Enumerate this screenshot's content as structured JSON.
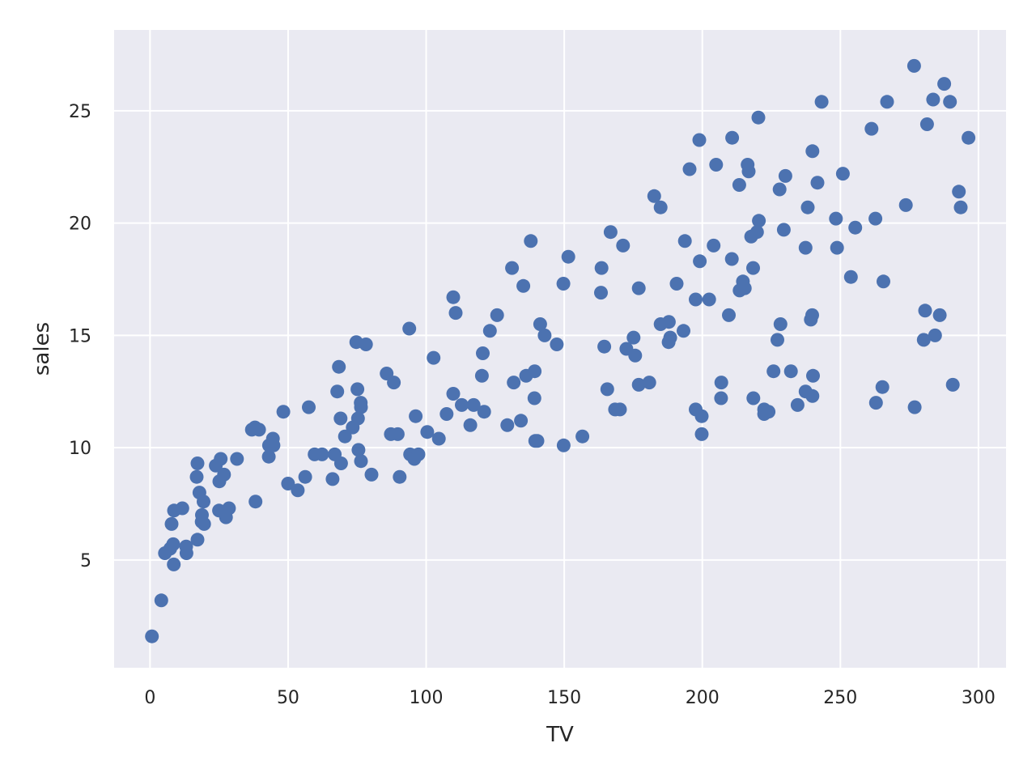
{
  "chart_data": {
    "type": "scatter",
    "xlabel": "TV",
    "ylabel": "sales",
    "xlim": [
      -13,
      310
    ],
    "ylim": [
      0.2,
      28.6
    ],
    "xticks": [
      0,
      50,
      100,
      150,
      200,
      250,
      300
    ],
    "yticks": [
      5,
      10,
      15,
      20,
      25
    ],
    "grid": true,
    "colors": {
      "background": "#eaeaf2",
      "grid": "#ffffff",
      "marker": "#4c72b0",
      "text": "#262626"
    },
    "series": [
      {
        "points": [
          [
            0.7,
            1.6
          ],
          [
            4.1,
            3.2
          ],
          [
            5.4,
            5.3
          ],
          [
            7.3,
            5.5
          ],
          [
            8.4,
            5.7
          ],
          [
            8.6,
            4.8
          ],
          [
            7.8,
            6.6
          ],
          [
            8.7,
            7.2
          ],
          [
            11.7,
            7.3
          ],
          [
            13.1,
            5.6
          ],
          [
            13.2,
            5.3
          ],
          [
            17.2,
            5.9
          ],
          [
            16.9,
            8.7
          ],
          [
            17.2,
            9.3
          ],
          [
            17.9,
            8.0
          ],
          [
            18.7,
            6.7
          ],
          [
            18.8,
            7.0
          ],
          [
            19.4,
            7.6
          ],
          [
            19.6,
            6.6
          ],
          [
            23.8,
            9.2
          ],
          [
            25.0,
            7.2
          ],
          [
            25.1,
            8.5
          ],
          [
            25.6,
            9.5
          ],
          [
            27.5,
            6.9
          ],
          [
            26.8,
            8.8
          ],
          [
            28.6,
            7.3
          ],
          [
            31.5,
            9.5
          ],
          [
            36.9,
            10.8
          ],
          [
            38.0,
            10.9
          ],
          [
            39.5,
            10.8
          ],
          [
            38.2,
            7.6
          ],
          [
            43.0,
            9.6
          ],
          [
            43.1,
            10.1
          ],
          [
            44.5,
            10.4
          ],
          [
            44.7,
            10.1
          ],
          [
            48.3,
            11.6
          ],
          [
            50.0,
            8.4
          ],
          [
            53.5,
            8.1
          ],
          [
            56.2,
            8.7
          ],
          [
            57.5,
            11.8
          ],
          [
            59.6,
            9.7
          ],
          [
            62.3,
            9.7
          ],
          [
            66.1,
            8.6
          ],
          [
            66.9,
            9.7
          ],
          [
            67.8,
            12.5
          ],
          [
            68.4,
            13.6
          ],
          [
            69.0,
            11.3
          ],
          [
            69.2,
            9.3
          ],
          [
            70.6,
            10.5
          ],
          [
            73.4,
            10.9
          ],
          [
            74.7,
            14.7
          ],
          [
            75.1,
            12.6
          ],
          [
            75.3,
            11.3
          ],
          [
            75.5,
            9.9
          ],
          [
            76.3,
            12.0
          ],
          [
            76.4,
            11.8
          ],
          [
            76.4,
            9.4
          ],
          [
            78.2,
            14.6
          ],
          [
            80.2,
            8.8
          ],
          [
            85.7,
            13.3
          ],
          [
            87.2,
            10.6
          ],
          [
            88.3,
            12.9
          ],
          [
            89.7,
            10.6
          ],
          [
            90.4,
            8.7
          ],
          [
            94.2,
            9.7
          ],
          [
            93.9,
            15.3
          ],
          [
            95.7,
            9.5
          ],
          [
            96.2,
            11.4
          ],
          [
            97.2,
            9.7
          ],
          [
            100.4,
            10.7
          ],
          [
            102.7,
            14.0
          ],
          [
            104.6,
            10.4
          ],
          [
            107.4,
            11.5
          ],
          [
            109.8,
            12.4
          ],
          [
            109.8,
            16.7
          ],
          [
            110.7,
            16.0
          ],
          [
            112.9,
            11.9
          ],
          [
            116.0,
            11.0
          ],
          [
            117.2,
            11.9
          ],
          [
            120.2,
            13.2
          ],
          [
            120.5,
            14.2
          ],
          [
            121.0,
            11.6
          ],
          [
            123.1,
            15.2
          ],
          [
            125.7,
            15.9
          ],
          [
            129.4,
            11.0
          ],
          [
            131.1,
            18.0
          ],
          [
            131.7,
            12.9
          ],
          [
            134.3,
            11.2
          ],
          [
            135.2,
            17.2
          ],
          [
            136.2,
            13.2
          ],
          [
            137.9,
            19.2
          ],
          [
            139.2,
            12.2
          ],
          [
            139.3,
            13.4
          ],
          [
            139.5,
            10.3
          ],
          [
            140.3,
            10.3
          ],
          [
            141.3,
            15.5
          ],
          [
            142.9,
            15.0
          ],
          [
            147.3,
            14.6
          ],
          [
            149.7,
            17.3
          ],
          [
            149.8,
            10.1
          ],
          [
            151.5,
            18.5
          ],
          [
            156.6,
            10.5
          ],
          [
            163.3,
            16.9
          ],
          [
            163.5,
            18.0
          ],
          [
            164.5,
            14.5
          ],
          [
            165.6,
            12.6
          ],
          [
            166.8,
            19.6
          ],
          [
            168.4,
            11.7
          ],
          [
            170.2,
            11.7
          ],
          [
            171.3,
            19.0
          ],
          [
            172.5,
            14.4
          ],
          [
            175.1,
            14.9
          ],
          [
            175.7,
            14.1
          ],
          [
            177.0,
            12.8
          ],
          [
            177.0,
            17.1
          ],
          [
            180.8,
            12.9
          ],
          [
            182.6,
            21.2
          ],
          [
            184.9,
            20.7
          ],
          [
            184.9,
            15.5
          ],
          [
            187.8,
            14.7
          ],
          [
            187.9,
            15.6
          ],
          [
            188.4,
            14.9
          ],
          [
            190.7,
            17.3
          ],
          [
            193.2,
            15.2
          ],
          [
            193.7,
            19.2
          ],
          [
            195.4,
            22.4
          ],
          [
            197.6,
            16.6
          ],
          [
            197.6,
            11.7
          ],
          [
            198.9,
            23.7
          ],
          [
            199.1,
            18.3
          ],
          [
            199.8,
            10.6
          ],
          [
            199.8,
            11.4
          ],
          [
            202.5,
            16.6
          ],
          [
            204.1,
            19.0
          ],
          [
            205.0,
            22.6
          ],
          [
            206.8,
            12.2
          ],
          [
            206.9,
            12.9
          ],
          [
            209.6,
            15.9
          ],
          [
            210.7,
            18.4
          ],
          [
            210.8,
            23.8
          ],
          [
            213.4,
            21.7
          ],
          [
            213.5,
            17.0
          ],
          [
            214.7,
            17.4
          ],
          [
            215.4,
            17.1
          ],
          [
            216.4,
            22.6
          ],
          [
            216.8,
            22.3
          ],
          [
            217.7,
            19.4
          ],
          [
            218.4,
            18.0
          ],
          [
            218.5,
            12.2
          ],
          [
            219.8,
            19.6
          ],
          [
            220.3,
            24.7
          ],
          [
            220.5,
            20.1
          ],
          [
            222.4,
            11.5
          ],
          [
            222.4,
            11.7
          ],
          [
            224.0,
            11.6
          ],
          [
            225.8,
            13.4
          ],
          [
            227.2,
            14.8
          ],
          [
            228.0,
            21.5
          ],
          [
            228.3,
            15.5
          ],
          [
            229.5,
            19.7
          ],
          [
            230.1,
            22.1
          ],
          [
            232.1,
            13.4
          ],
          [
            234.5,
            11.9
          ],
          [
            237.4,
            12.5
          ],
          [
            237.4,
            18.9
          ],
          [
            238.2,
            20.7
          ],
          [
            239.3,
            15.7
          ],
          [
            239.8,
            15.9
          ],
          [
            239.9,
            23.2
          ],
          [
            240.1,
            13.2
          ],
          [
            239.9,
            12.3
          ],
          [
            241.7,
            21.8
          ],
          [
            243.2,
            25.4
          ],
          [
            248.4,
            20.2
          ],
          [
            248.8,
            18.9
          ],
          [
            250.9,
            22.2
          ],
          [
            253.8,
            17.6
          ],
          [
            255.4,
            19.8
          ],
          [
            261.3,
            24.2
          ],
          [
            262.7,
            20.2
          ],
          [
            262.9,
            12.0
          ],
          [
            265.2,
            12.7
          ],
          [
            265.6,
            17.4
          ],
          [
            266.9,
            25.4
          ],
          [
            273.7,
            20.8
          ],
          [
            276.7,
            27.0
          ],
          [
            276.9,
            11.8
          ],
          [
            280.2,
            14.8
          ],
          [
            280.7,
            16.1
          ],
          [
            281.4,
            24.4
          ],
          [
            283.6,
            25.5
          ],
          [
            284.3,
            15.0
          ],
          [
            286.0,
            15.9
          ],
          [
            287.6,
            26.2
          ],
          [
            289.7,
            25.4
          ],
          [
            290.7,
            12.8
          ],
          [
            292.9,
            21.4
          ],
          [
            293.6,
            20.7
          ],
          [
            296.4,
            23.8
          ]
        ]
      }
    ]
  }
}
